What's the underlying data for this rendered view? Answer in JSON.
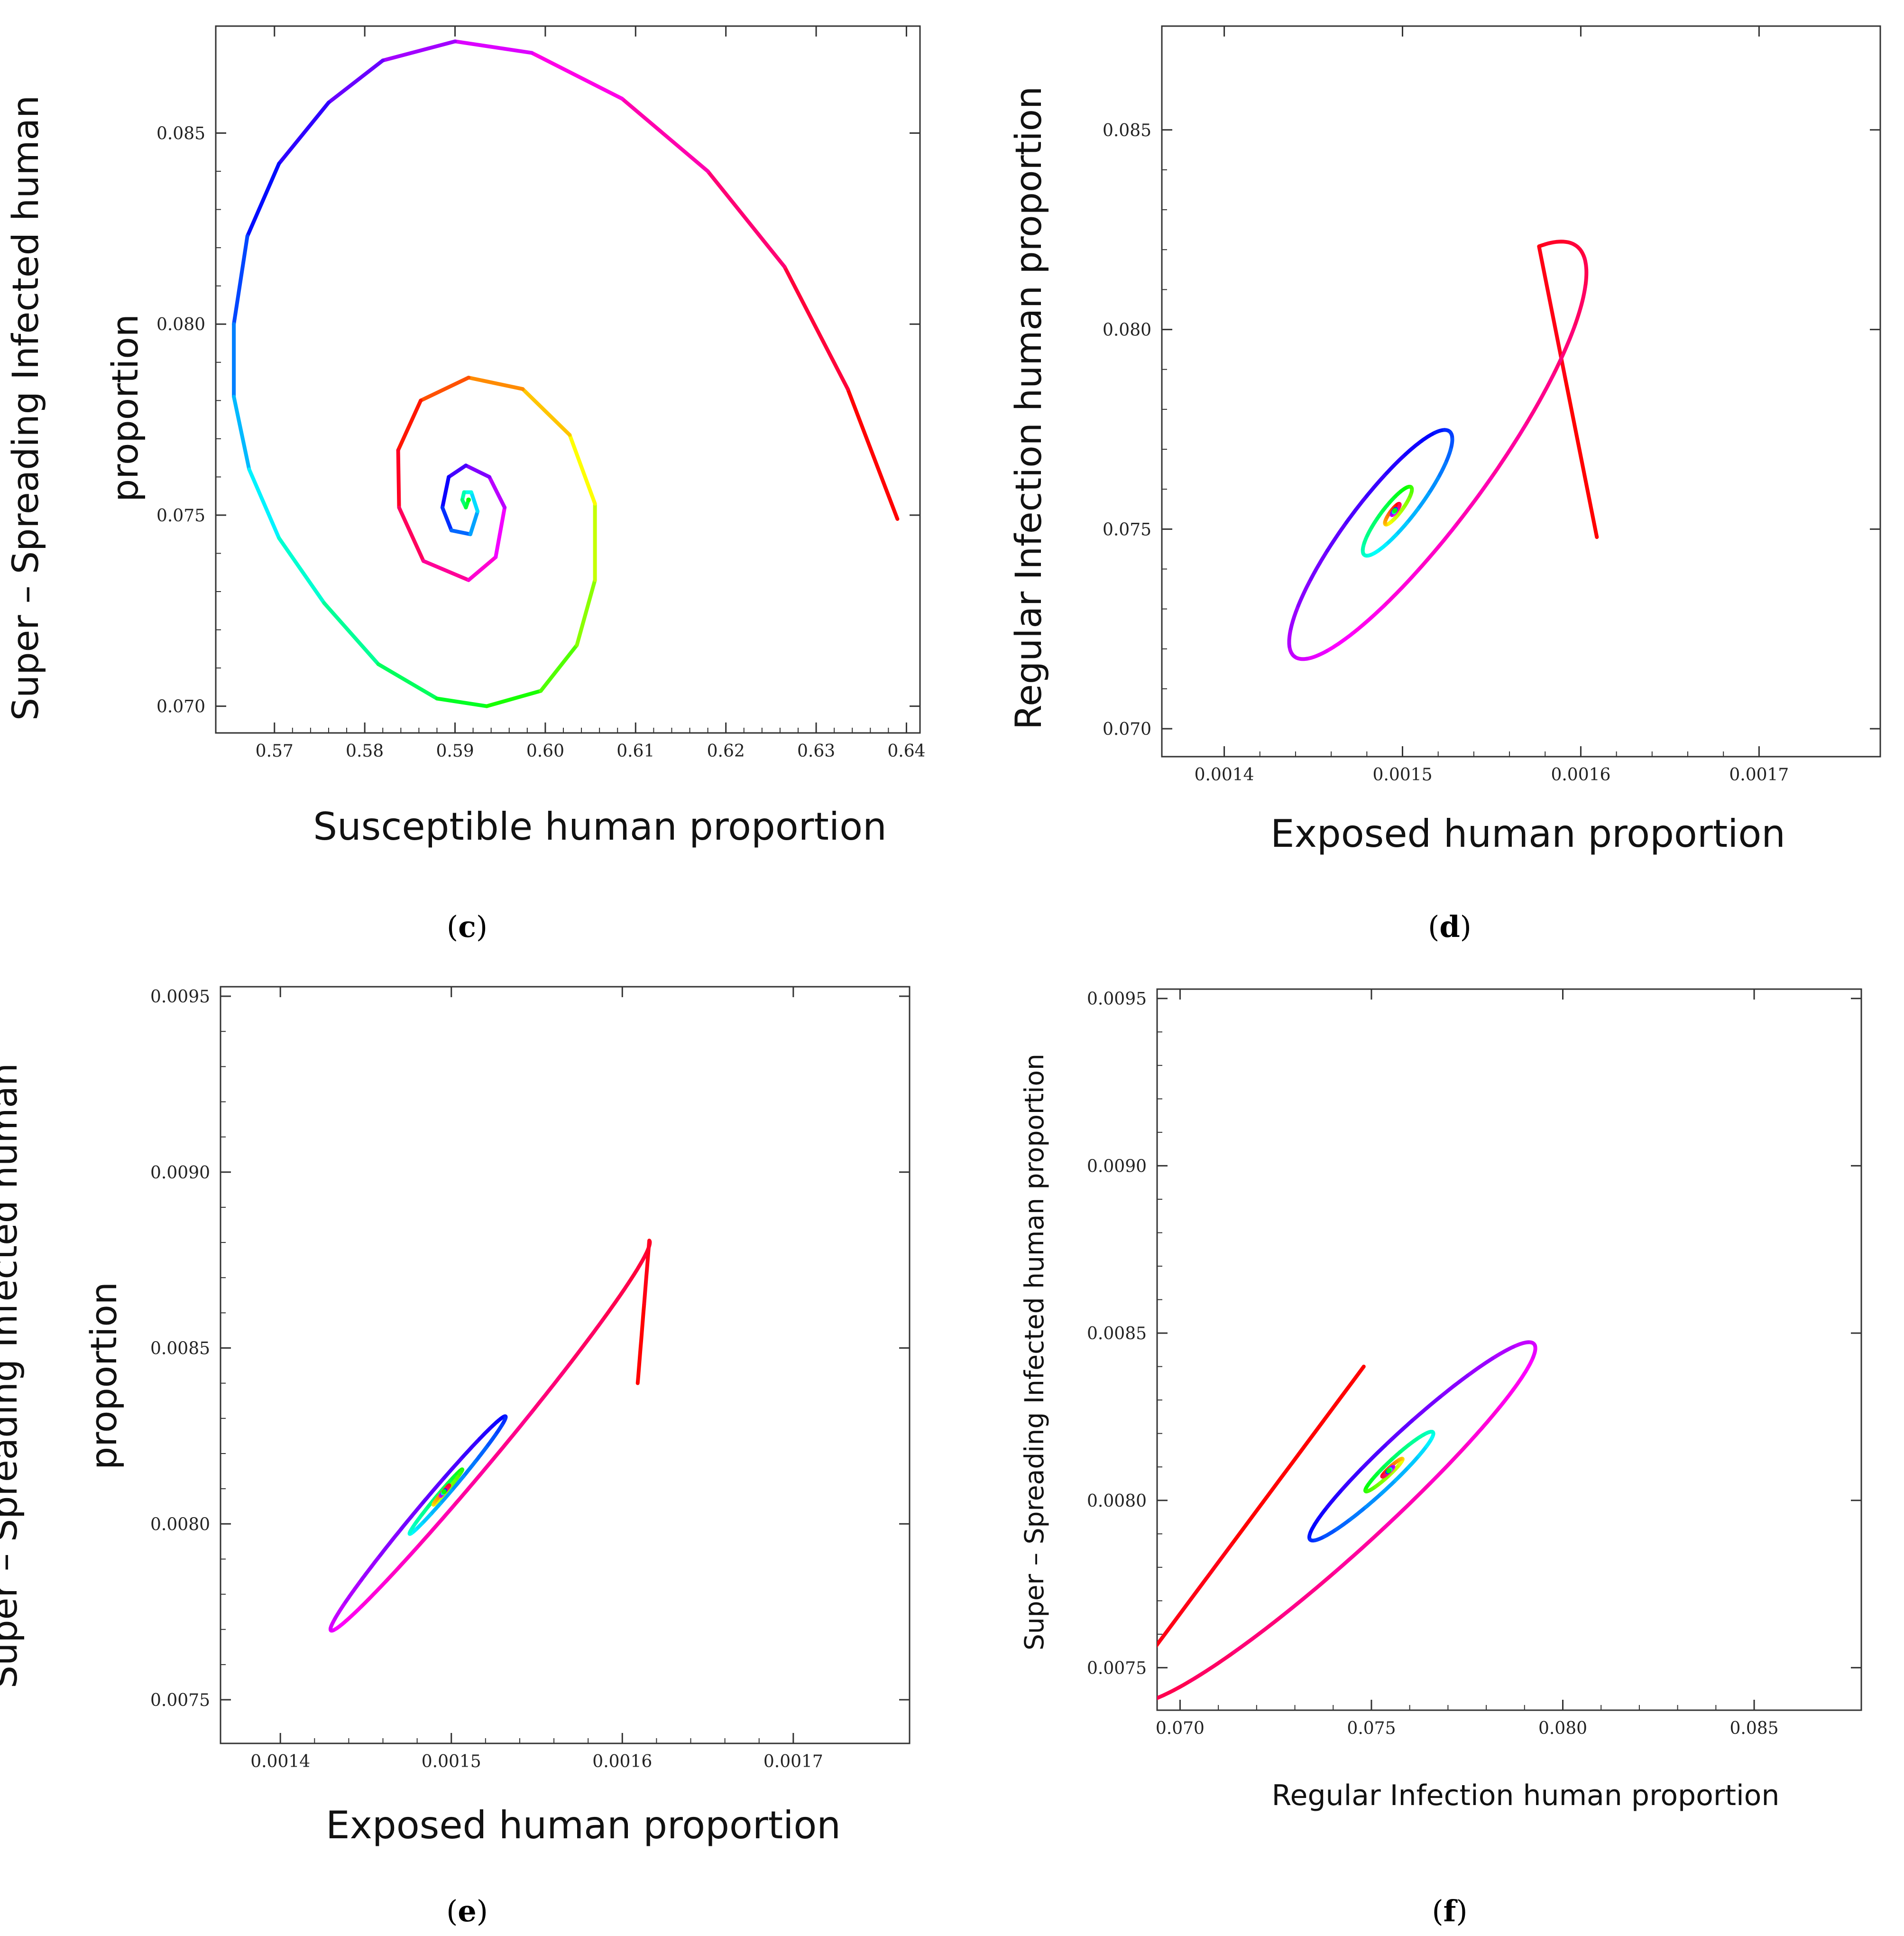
{
  "figure": {
    "description_note": "Phase-plane trajectories spiralling to an endemic equilibrium"
  },
  "chart_data": [
    {
      "id": "c",
      "type": "line",
      "panel_label": "c",
      "xlabel": "Susceptible  human  proportion",
      "ylabel_lines": [
        "Super – Spreading Infected human",
        "proportion"
      ],
      "xlim": [
        0.5635,
        0.6415
      ],
      "ylim": [
        0.0693,
        0.0878
      ],
      "xticks": [
        0.57,
        0.58,
        0.59,
        0.6,
        0.61,
        0.62,
        0.63,
        0.64
      ],
      "xtick_labels": [
        "0.57",
        "0.58",
        "0.59",
        "0.60",
        "0.61",
        "0.62",
        "0.63",
        "0.64"
      ],
      "yticks": [
        0.07,
        0.075,
        0.08,
        0.085
      ],
      "ytick_labels": [
        "0.070",
        "0.075",
        "0.080",
        "0.085"
      ],
      "series": [
        {
          "name": "trajectory",
          "style": "polyline",
          "start": [
            0.639,
            0.0749
          ],
          "center": [
            0.5915,
            0.0754
          ],
          "points": [
            [
              0.639,
              0.0749
            ],
            [
              0.6335,
              0.0783
            ],
            [
              0.6265,
              0.0815
            ],
            [
              0.618,
              0.084
            ],
            [
              0.6085,
              0.0859
            ],
            [
              0.5985,
              0.0871
            ],
            [
              0.59,
              0.0874
            ],
            [
              0.582,
              0.0869
            ],
            [
              0.576,
              0.0858
            ],
            [
              0.5705,
              0.0842
            ],
            [
              0.567,
              0.0823
            ],
            [
              0.5655,
              0.08
            ],
            [
              0.5655,
              0.0781
            ],
            [
              0.5672,
              0.0762
            ],
            [
              0.5705,
              0.0744
            ],
            [
              0.5755,
              0.0727
            ],
            [
              0.5815,
              0.0711
            ],
            [
              0.588,
              0.0702
            ],
            [
              0.5935,
              0.07
            ],
            [
              0.5995,
              0.0704
            ],
            [
              0.6035,
              0.0716
            ],
            [
              0.6055,
              0.0733
            ],
            [
              0.6055,
              0.0753
            ],
            [
              0.6027,
              0.0771
            ],
            [
              0.5975,
              0.0783
            ],
            [
              0.5915,
              0.0786
            ],
            [
              0.5862,
              0.078
            ],
            [
              0.5837,
              0.0767
            ],
            [
              0.5838,
              0.0752
            ],
            [
              0.5865,
              0.0738
            ],
            [
              0.5915,
              0.0733
            ],
            [
              0.5945,
              0.0739
            ],
            [
              0.5955,
              0.0752
            ],
            [
              0.5938,
              0.076
            ],
            [
              0.5912,
              0.0763
            ],
            [
              0.5893,
              0.076
            ],
            [
              0.5886,
              0.0752
            ],
            [
              0.5896,
              0.0746
            ],
            [
              0.5917,
              0.0745
            ],
            [
              0.5925,
              0.0751
            ],
            [
              0.5918,
              0.0756
            ],
            [
              0.591,
              0.0756
            ],
            [
              0.5908,
              0.0754
            ],
            [
              0.5912,
              0.0752
            ],
            [
              0.5915,
              0.0754
            ]
          ]
        }
      ]
    },
    {
      "id": "d",
      "type": "line",
      "panel_label": "d",
      "xlabel": "Exposed  human  proportion",
      "ylabel_lines": [
        "Regular  Infection  human proportion"
      ],
      "xlim": [
        0.001365,
        0.001768
      ],
      "ylim": [
        0.0693,
        0.0876
      ],
      "xticks": [
        0.0014,
        0.0015,
        0.0016,
        0.0017
      ],
      "xtick_labels": [
        "0.0014",
        "0.0015",
        "0.0016",
        "0.0017"
      ],
      "yticks": [
        0.07,
        0.075,
        0.08,
        0.085
      ],
      "ytick_labels": [
        "0.070",
        "0.075",
        "0.080",
        "0.085"
      ],
      "series": [
        {
          "name": "trajectory",
          "style": "spiral",
          "start": [
            0.001609,
            0.0748
          ],
          "center": [
            0.0014955,
            0.07545
          ],
          "decay": 1.2,
          "phase0": -0.62,
          "turns": 5,
          "axis_a": [
            0.000121,
            0.0069
          ],
          "axis_b": [
            3e-05,
            -0.00175
          ]
        }
      ]
    },
    {
      "id": "e",
      "type": "line",
      "panel_label": "e",
      "xlabel": "Exposed  human  proportion",
      "ylabel_lines": [
        "Super – Spreading Infected human",
        "proportion"
      ],
      "xlim": [
        0.001365,
        0.001768
      ],
      "ylim": [
        0.007376,
        0.009527
      ],
      "xticks": [
        0.0014,
        0.0015,
        0.0016,
        0.0017
      ],
      "xtick_labels": [
        "0.0014",
        "0.0015",
        "0.0016",
        "0.0017"
      ],
      "yticks": [
        0.0075,
        0.008,
        0.0085,
        0.009,
        0.0095
      ],
      "ytick_labels": [
        "0.0075",
        "0.0080",
        "0.0085",
        "0.0090",
        "0.0095"
      ],
      "series": [
        {
          "name": "trajectory",
          "style": "spiral",
          "start": [
            0.001609,
            0.0084
          ],
          "center": [
            0.0014955,
            0.00809
          ],
          "decay": 1.2,
          "phase0": -0.17,
          "turns": 5,
          "axis_a": [
            0.000124,
            0.00072
          ],
          "axis_b": [
            1.15e-05,
            -3.5e-05
          ]
        }
      ]
    },
    {
      "id": "f",
      "type": "line",
      "panel_label": "f",
      "xlabel": "Regular  Infection  human proportion",
      "ylabel_lines": [
        "Super – Spreading Infected human proportion"
      ],
      "xlim": [
        0.0694,
        0.0878
      ],
      "ylim": [
        0.007373,
        0.009528
      ],
      "xticks": [
        0.07,
        0.075,
        0.08,
        0.085
      ],
      "xtick_labels": [
        "0.070",
        "0.075",
        "0.080",
        "0.085"
      ],
      "yticks": [
        0.0075,
        0.008,
        0.0085,
        0.009,
        0.0095
      ],
      "ytick_labels": [
        "0.0075",
        "0.0080",
        "0.0085",
        "0.0090",
        "0.0095"
      ],
      "series": [
        {
          "name": "trajectory",
          "style": "spiral",
          "start": [
            0.0748,
            0.0084
          ],
          "center": [
            0.07547,
            0.00809
          ],
          "decay": 1.2,
          "phase0": 2.83,
          "turns": 5,
          "axis_a": [
            0.0071,
            0.00074
          ],
          "axis_b": [
            -0.0006,
            0.00016
          ]
        }
      ]
    }
  ]
}
